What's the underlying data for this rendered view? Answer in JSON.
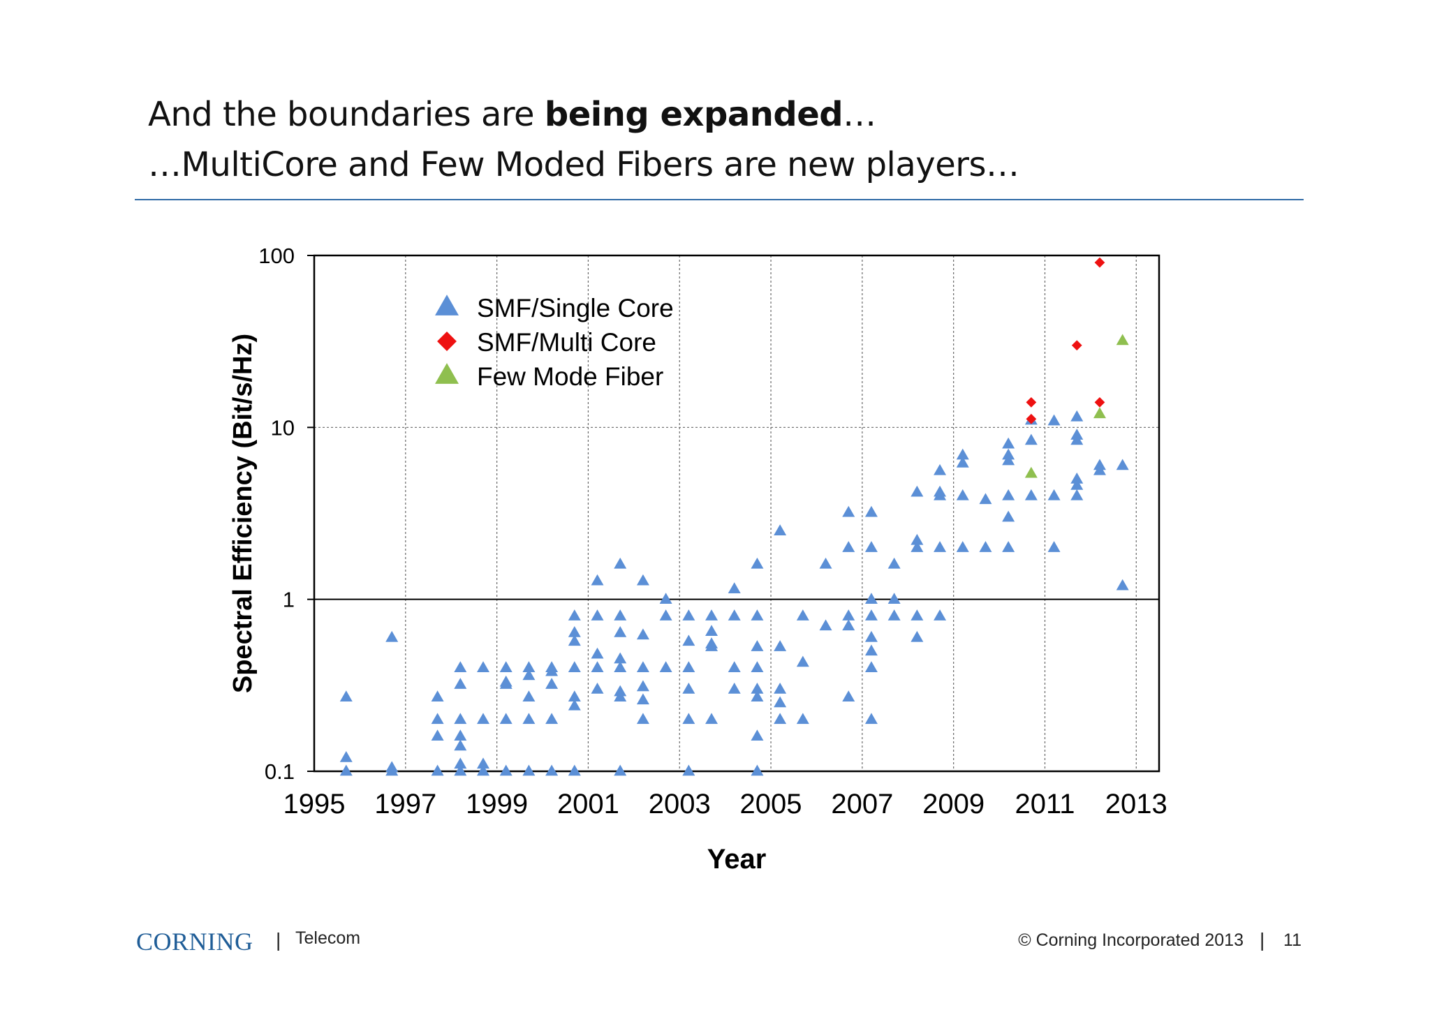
{
  "slide": {
    "title_line1_prefix": "And the boundaries are ",
    "title_line1_bold": "being expanded",
    "title_line1_suffix": "…",
    "title_line2": "…MultiCore and Few Moded Fibers are new players…",
    "accent_color": "#2f6aa6"
  },
  "footer": {
    "logo": "CORNING",
    "division": "Telecom",
    "copyright": "© Corning Incorporated 2013",
    "page_number": "11",
    "separator": "|"
  },
  "chart_data": {
    "type": "scatter",
    "title": "",
    "xlabel": "Year",
    "ylabel": "Spectral Efficiency (Bit/s/Hz)",
    "xlim": [
      1995,
      2013.5
    ],
    "ylim": [
      0.1,
      100
    ],
    "yscale": "log",
    "x_ticks": [
      1995,
      1997,
      1999,
      2001,
      2003,
      2005,
      2007,
      2009,
      2011,
      2013
    ],
    "y_ticks": [
      0.1,
      1,
      10,
      100
    ],
    "y_tick_labels": [
      "0.1",
      "1",
      "10",
      "100"
    ],
    "grid": {
      "vertical": "dashed",
      "horizontal_major": "solid at 1, dashed at 10"
    },
    "legend": {
      "placement": "top-left"
    },
    "series": [
      {
        "name": "SMF/Single Core",
        "marker": "triangle",
        "color": "#5b8fd6",
        "points": [
          [
            1995.7,
            0.27
          ],
          [
            1995.7,
            0.12
          ],
          [
            1995.7,
            0.1
          ],
          [
            1996.7,
            0.6
          ],
          [
            1996.7,
            0.105
          ],
          [
            1996.7,
            0.1
          ],
          [
            1997.7,
            0.27
          ],
          [
            1997.7,
            0.2
          ],
          [
            1997.7,
            0.16
          ],
          [
            1997.7,
            0.1
          ],
          [
            1998.2,
            0.4
          ],
          [
            1998.2,
            0.32
          ],
          [
            1998.2,
            0.2
          ],
          [
            1998.2,
            0.16
          ],
          [
            1998.2,
            0.14
          ],
          [
            1998.2,
            0.11
          ],
          [
            1998.2,
            0.1
          ],
          [
            1998.7,
            0.4
          ],
          [
            1998.7,
            0.2
          ],
          [
            1998.7,
            0.11
          ],
          [
            1998.7,
            0.1
          ],
          [
            1999.2,
            0.4
          ],
          [
            1999.2,
            0.33
          ],
          [
            1999.2,
            0.32
          ],
          [
            1999.2,
            0.2
          ],
          [
            1999.2,
            0.1
          ],
          [
            1999.7,
            0.4
          ],
          [
            1999.7,
            0.36
          ],
          [
            1999.7,
            0.27
          ],
          [
            1999.7,
            0.2
          ],
          [
            1999.7,
            0.1
          ],
          [
            2000.2,
            0.4
          ],
          [
            2000.2,
            0.38
          ],
          [
            2000.2,
            0.32
          ],
          [
            2000.2,
            0.2
          ],
          [
            2000.2,
            0.1
          ],
          [
            2000.7,
            0.8
          ],
          [
            2000.7,
            0.64
          ],
          [
            2000.7,
            0.57
          ],
          [
            2000.7,
            0.4
          ],
          [
            2000.7,
            0.27
          ],
          [
            2000.7,
            0.24
          ],
          [
            2000.7,
            0.1
          ],
          [
            2001.2,
            1.28
          ],
          [
            2001.2,
            0.8
          ],
          [
            2001.2,
            0.48
          ],
          [
            2001.2,
            0.4
          ],
          [
            2001.2,
            0.3
          ],
          [
            2001.7,
            1.6
          ],
          [
            2001.7,
            0.8
          ],
          [
            2001.7,
            0.64
          ],
          [
            2001.7,
            0.45
          ],
          [
            2001.7,
            0.4
          ],
          [
            2001.7,
            0.29
          ],
          [
            2001.7,
            0.27
          ],
          [
            2001.7,
            0.1
          ],
          [
            2002.2,
            1.28
          ],
          [
            2002.2,
            0.62
          ],
          [
            2002.2,
            0.4
          ],
          [
            2002.2,
            0.31
          ],
          [
            2002.2,
            0.26
          ],
          [
            2002.2,
            0.2
          ],
          [
            2002.7,
            1.0
          ],
          [
            2002.7,
            0.8
          ],
          [
            2002.7,
            0.4
          ],
          [
            2003.2,
            0.8
          ],
          [
            2003.2,
            0.57
          ],
          [
            2003.2,
            0.4
          ],
          [
            2003.2,
            0.3
          ],
          [
            2003.2,
            0.2
          ],
          [
            2003.2,
            0.1
          ],
          [
            2003.7,
            0.8
          ],
          [
            2003.7,
            0.65
          ],
          [
            2003.7,
            0.55
          ],
          [
            2003.7,
            0.53
          ],
          [
            2003.7,
            0.2
          ],
          [
            2004.2,
            1.15
          ],
          [
            2004.2,
            0.8
          ],
          [
            2004.2,
            0.4
          ],
          [
            2004.2,
            0.3
          ],
          [
            2004.7,
            1.6
          ],
          [
            2004.7,
            0.8
          ],
          [
            2004.7,
            0.53
          ],
          [
            2004.7,
            0.4
          ],
          [
            2004.7,
            0.3
          ],
          [
            2004.7,
            0.27
          ],
          [
            2004.7,
            0.16
          ],
          [
            2004.7,
            0.1
          ],
          [
            2005.2,
            2.5
          ],
          [
            2005.2,
            0.53
          ],
          [
            2005.2,
            0.3
          ],
          [
            2005.2,
            0.25
          ],
          [
            2005.2,
            0.2
          ],
          [
            2005.7,
            0.8
          ],
          [
            2005.7,
            0.43
          ],
          [
            2005.7,
            0.2
          ],
          [
            2006.2,
            1.6
          ],
          [
            2006.2,
            0.7
          ],
          [
            2006.7,
            3.2
          ],
          [
            2006.7,
            2.0
          ],
          [
            2006.7,
            0.8
          ],
          [
            2006.7,
            0.7
          ],
          [
            2006.7,
            0.27
          ],
          [
            2007.2,
            3.2
          ],
          [
            2007.2,
            2.0
          ],
          [
            2007.2,
            1.0
          ],
          [
            2007.2,
            0.8
          ],
          [
            2007.2,
            0.6
          ],
          [
            2007.2,
            0.5
          ],
          [
            2007.2,
            0.4
          ],
          [
            2007.2,
            0.2
          ],
          [
            2007.7,
            1.6
          ],
          [
            2007.7,
            1.0
          ],
          [
            2007.7,
            0.8
          ],
          [
            2008.2,
            4.2
          ],
          [
            2008.2,
            2.2
          ],
          [
            2008.2,
            2.0
          ],
          [
            2008.2,
            0.8
          ],
          [
            2008.2,
            0.6
          ],
          [
            2008.7,
            5.6
          ],
          [
            2008.7,
            4.2
          ],
          [
            2008.7,
            4.0
          ],
          [
            2008.7,
            2.0
          ],
          [
            2008.7,
            0.8
          ],
          [
            2009.2,
            6.9
          ],
          [
            2009.2,
            6.2
          ],
          [
            2009.2,
            4.0
          ],
          [
            2009.2,
            2.0
          ],
          [
            2009.7,
            3.8
          ],
          [
            2009.7,
            2.0
          ],
          [
            2010.2,
            8.0
          ],
          [
            2010.2,
            6.9
          ],
          [
            2010.2,
            6.4
          ],
          [
            2010.2,
            4.0
          ],
          [
            2010.2,
            3.0
          ],
          [
            2010.2,
            2.0
          ],
          [
            2010.7,
            11.0
          ],
          [
            2010.7,
            8.4
          ],
          [
            2010.7,
            4.0
          ],
          [
            2011.2,
            10.9
          ],
          [
            2011.2,
            4.0
          ],
          [
            2011.2,
            2.0
          ],
          [
            2011.7,
            11.5
          ],
          [
            2011.7,
            9.0
          ],
          [
            2011.7,
            8.4
          ],
          [
            2011.7,
            5.0
          ],
          [
            2011.7,
            4.6
          ],
          [
            2011.7,
            4.0
          ],
          [
            2012.2,
            6.0
          ],
          [
            2012.2,
            5.6
          ],
          [
            2012.7,
            6.0
          ],
          [
            2012.7,
            1.2
          ]
        ]
      },
      {
        "name": "SMF/Multi Core",
        "marker": "diamond",
        "color": "#ee1111",
        "points": [
          [
            2010.7,
            14.0
          ],
          [
            2010.7,
            11.2
          ],
          [
            2011.7,
            30.0
          ],
          [
            2012.2,
            91.0
          ],
          [
            2012.2,
            14.0
          ]
        ]
      },
      {
        "name": "Few Mode Fiber",
        "marker": "triangle",
        "color": "#8fbf4f",
        "points": [
          [
            2010.7,
            5.4
          ],
          [
            2012.2,
            12.0
          ],
          [
            2012.7,
            32.0
          ]
        ]
      }
    ]
  }
}
